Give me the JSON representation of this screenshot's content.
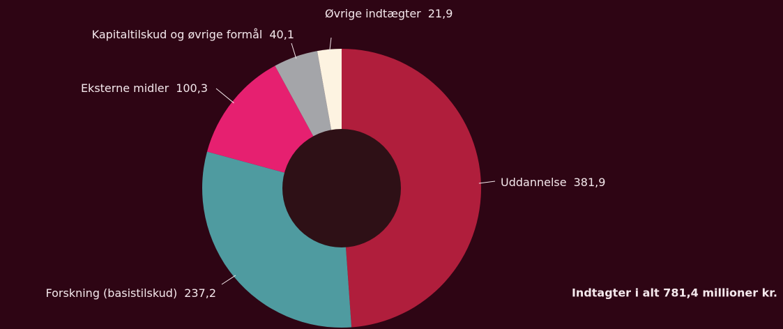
{
  "chart_data": {
    "type": "donut",
    "categories": [
      "Uddannelse",
      "Forskning (basistilskud)",
      "Eksterne midler",
      "Kapitaltilskud og øvrige formål",
      "Øvrige indtægter"
    ],
    "values": [
      381.9,
      237.2,
      100.3,
      40.1,
      21.9
    ],
    "value_labels": [
      "381,9",
      "237,2",
      "100,3",
      "40,1",
      "21,9"
    ],
    "colors": [
      "#b01e3c",
      "#4f9ba0",
      "#e62070",
      "#a4a5a9",
      "#fdf3e1"
    ],
    "annotation": "Indtagter i alt  781,4  millioner kr."
  }
}
